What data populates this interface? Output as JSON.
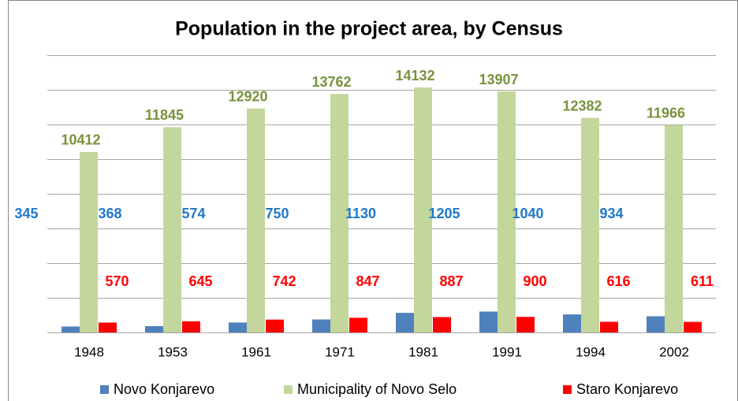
{
  "chart_data": {
    "type": "bar",
    "title": "Population in the project area, by Census",
    "categories": [
      "1948",
      "1953",
      "1961",
      "1971",
      "1981",
      "1991",
      "1994",
      "2002"
    ],
    "series": [
      {
        "name": "Novo Konjarevo",
        "color": "#4f81bd",
        "label_color": "#1f78c8",
        "values": [
          345,
          368,
          574,
          750,
          1130,
          1205,
          1040,
          934
        ]
      },
      {
        "name": "Municipality of Novo Selo",
        "color": "#c3d69b",
        "label_color": "#77933c",
        "values": [
          10412,
          11845,
          12920,
          13762,
          14132,
          13907,
          12382,
          11966
        ]
      },
      {
        "name": "Staro Konjarevo",
        "color": "#ff0000",
        "label_color": "#ff0000",
        "values": [
          570,
          645,
          742,
          847,
          887,
          900,
          616,
          611
        ]
      }
    ],
    "ylim": [
      0,
      16000
    ],
    "yticks": [
      0,
      2000,
      4000,
      6000,
      8000,
      10000,
      12000,
      14000,
      16000
    ],
    "grid": true
  }
}
